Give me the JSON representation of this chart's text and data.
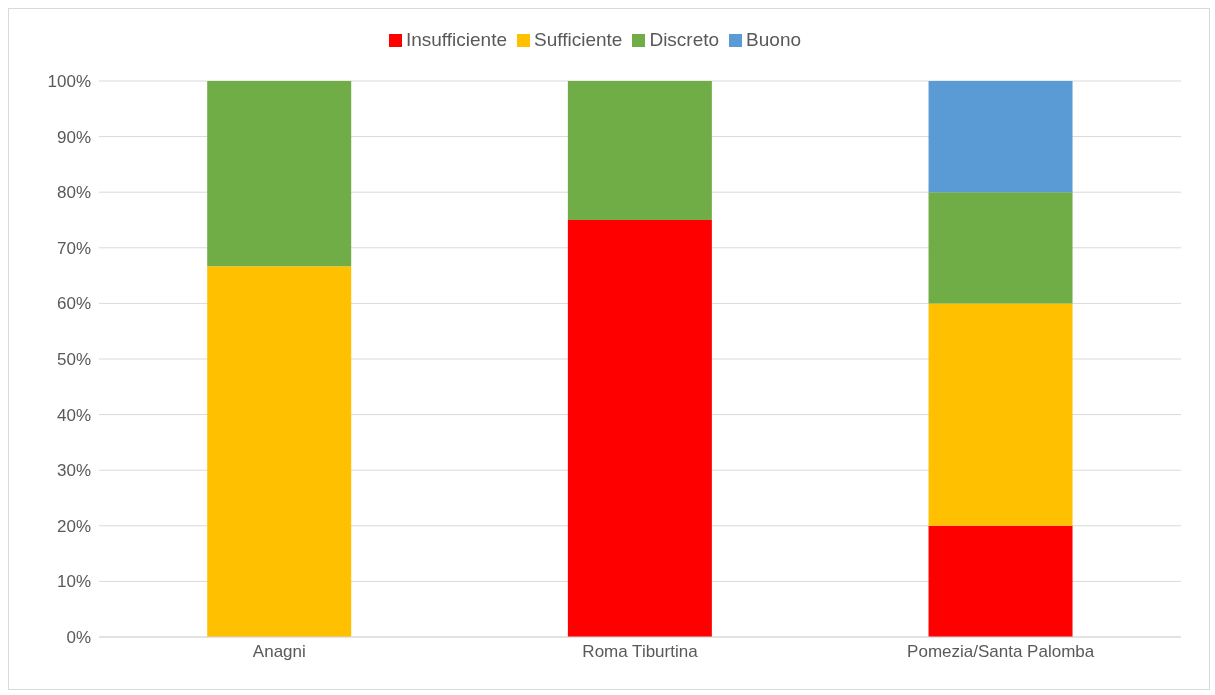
{
  "chart_data": {
    "type": "bar",
    "stacked": true,
    "categories": [
      "Anagni",
      "Roma Tiburtina",
      "Pomezia/Santa Palomba"
    ],
    "series": [
      {
        "name": "Insufficiente",
        "color": "#ff0000",
        "values": [
          0,
          75,
          20
        ]
      },
      {
        "name": "Sufficiente",
        "color": "#ffc000",
        "values": [
          66.7,
          0,
          40
        ]
      },
      {
        "name": "Discreto",
        "color": "#70ad47",
        "values": [
          33.3,
          25,
          20
        ]
      },
      {
        "name": "Buono",
        "color": "#5b9bd5",
        "values": [
          0,
          0,
          20
        ]
      }
    ],
    "ylim": [
      0,
      100
    ],
    "yticks": [
      {
        "value": 0,
        "label": "0%"
      },
      {
        "value": 10,
        "label": "10%"
      },
      {
        "value": 20,
        "label": "20%"
      },
      {
        "value": 30,
        "label": "30%"
      },
      {
        "value": 40,
        "label": "40%"
      },
      {
        "value": 50,
        "label": "50%"
      },
      {
        "value": 60,
        "label": "60%"
      },
      {
        "value": 70,
        "label": "70%"
      },
      {
        "value": 80,
        "label": "80%"
      },
      {
        "value": 90,
        "label": "90%"
      },
      {
        "value": 100,
        "label": "100%"
      }
    ],
    "grid": "y",
    "legend": "top"
  }
}
